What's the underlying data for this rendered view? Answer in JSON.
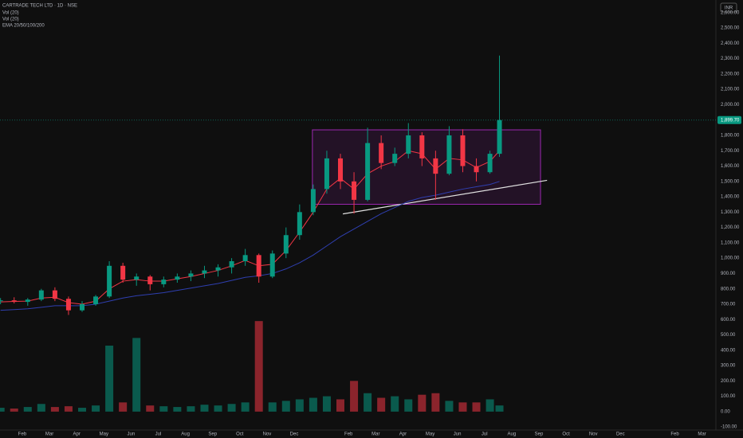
{
  "chart_data": {
    "type": "candlestick",
    "title": "CARTRADE TECH LTD · 1D · NSE",
    "indicators": [
      "Vol (20)",
      "Vol (20)",
      "EMA 20/50/100/200"
    ],
    "currency": "INR",
    "xlim": [
      0.18,
      26.51
    ],
    "xticks": [
      {
        "value": 1,
        "label": "Feb"
      },
      {
        "value": 2,
        "label": "Mar"
      },
      {
        "value": 3,
        "label": "Apr"
      },
      {
        "value": 4,
        "label": "May"
      },
      {
        "value": 5,
        "label": "Jun"
      },
      {
        "value": 6,
        "label": "Jul"
      },
      {
        "value": 7,
        "label": "Aug"
      },
      {
        "value": 8,
        "label": "Sep"
      },
      {
        "value": 9,
        "label": "Oct"
      },
      {
        "value": 10,
        "label": "Nov"
      },
      {
        "value": 11,
        "label": "Dec"
      },
      2025,
      {
        "value": 13,
        "label": "Feb"
      },
      {
        "value": 14,
        "label": "Mar"
      },
      {
        "value": 15,
        "label": "Apr"
      },
      {
        "value": 16,
        "label": "May"
      },
      {
        "value": 17,
        "label": "Jun"
      },
      {
        "value": 18,
        "label": "Jul"
      },
      {
        "value": 19,
        "label": "Aug"
      },
      {
        "value": 20,
        "label": "Sep"
      },
      {
        "value": 21,
        "label": "Oct"
      },
      {
        "value": 22,
        "label": "Nov"
      },
      {
        "value": 23,
        "label": "Dec"
      },
      2026,
      {
        "value": 25,
        "label": "Feb"
      },
      {
        "value": 26,
        "label": "Mar"
      }
    ],
    "ylim": [
      -120,
      2682
    ],
    "yticks": [
      {
        "value": -100,
        "label": "-100.00"
      },
      {
        "value": 0,
        "label": "0.00"
      },
      {
        "value": 100,
        "label": "100.00"
      },
      {
        "value": 200,
        "label": "200.00"
      },
      {
        "value": 300,
        "label": "300.00"
      },
      {
        "value": 400,
        "label": "400.00"
      },
      {
        "value": 500,
        "label": "500.00"
      },
      {
        "value": 600,
        "label": "600.00"
      },
      {
        "value": 700,
        "label": "700.00"
      },
      {
        "value": 800,
        "label": "800.00"
      },
      {
        "value": 900,
        "label": "900.00"
      },
      {
        "value": 1000,
        "label": "1,000.00"
      },
      {
        "value": 1100,
        "label": "1,100.00"
      },
      {
        "value": 1200,
        "label": "1,200.00"
      },
      {
        "value": 1300,
        "label": "1,300.00"
      },
      {
        "value": 1400,
        "label": "1,400.00"
      },
      {
        "value": 1500,
        "label": "1,500.00"
      },
      {
        "value": 1600,
        "label": "1,600.00"
      },
      {
        "value": 1700,
        "label": "1,700.00"
      },
      {
        "value": 1800,
        "label": "1,800.00"
      },
      {
        "value": 1900,
        "label": "1,900.00"
      },
      {
        "value": 2000,
        "label": "2,000.00"
      },
      {
        "value": 2100,
        "label": "2,100.00"
      },
      {
        "value": 2200,
        "label": "2,200.00"
      },
      {
        "value": 2300,
        "label": "2,300.00"
      },
      {
        "value": 2400,
        "label": "2,400.00"
      },
      {
        "value": 2500,
        "label": "2,500.00"
      },
      {
        "value": 2600,
        "label": "2,600.00"
      }
    ],
    "grid": false,
    "up_color": "#089981",
    "down_color": "#f23645",
    "candles": {
      "x": [
        0.2,
        0.7,
        1.2,
        1.7,
        2.2,
        2.7,
        3.2,
        3.7,
        4.2,
        4.7,
        5.2,
        5.7,
        6.2,
        6.7,
        7.2,
        7.7,
        8.2,
        8.7,
        9.2,
        9.7,
        10.2,
        10.7,
        11.2,
        11.7,
        12.2,
        12.7,
        13.2,
        13.7,
        14.2,
        14.7,
        15.2,
        15.7,
        16.2,
        16.7,
        17.2,
        17.7,
        18.2,
        18.55
      ],
      "open": [
        720,
        725,
        715,
        730,
        790,
        735,
        660,
        700,
        750,
        950,
        860,
        880,
        830,
        860,
        880,
        900,
        920,
        940,
        980,
        1020,
        880,
        1030,
        1150,
        1300,
        1450,
        1650,
        1500,
        1380,
        1750,
        1620,
        1680,
        1800,
        1650,
        1550,
        1800,
        1600,
        1560,
        1680
      ],
      "high": [
        740,
        745,
        740,
        800,
        810,
        750,
        720,
        760,
        980,
        970,
        900,
        890,
        880,
        900,
        920,
        950,
        960,
        1000,
        1060,
        1030,
        1050,
        1200,
        1350,
        1480,
        1700,
        1680,
        1560,
        1850,
        1800,
        1720,
        1880,
        1820,
        1700,
        1860,
        1840,
        1650,
        1700,
        2320
      ],
      "low": [
        700,
        705,
        690,
        720,
        720,
        630,
        650,
        690,
        740,
        840,
        820,
        790,
        810,
        840,
        850,
        870,
        880,
        900,
        950,
        840,
        870,
        1000,
        1120,
        1280,
        1420,
        1450,
        1290,
        1370,
        1580,
        1600,
        1650,
        1600,
        1380,
        1540,
        1560,
        1500,
        1550,
        1660
      ],
      "close": [
        725,
        715,
        730,
        790,
        735,
        660,
        700,
        750,
        950,
        860,
        880,
        830,
        860,
        880,
        900,
        920,
        940,
        980,
        1020,
        880,
        1030,
        1150,
        1300,
        1450,
        1650,
        1500,
        1380,
        1750,
        1620,
        1680,
        1800,
        1650,
        1550,
        1800,
        1600,
        1560,
        1680,
        1899.7
      ]
    },
    "volume": [
      25,
      20,
      30,
      50,
      30,
      35,
      25,
      40,
      430,
      60,
      480,
      40,
      35,
      30,
      35,
      45,
      40,
      50,
      60,
      590,
      60,
      70,
      80,
      90,
      100,
      80,
      200,
      120,
      90,
      100,
      80,
      110,
      120,
      70,
      60,
      60,
      80,
      40
    ],
    "lines": [
      {
        "color": "#f23645",
        "values": [
          715,
          718,
          720,
          740,
          745,
          710,
          700,
          720,
          800,
          850,
          860,
          850,
          850,
          865,
          880,
          900,
          920,
          950,
          985,
          950,
          960,
          1050,
          1170,
          1300,
          1450,
          1520,
          1450,
          1550,
          1600,
          1630,
          1700,
          1680,
          1580,
          1650,
          1640,
          1590,
          1630,
          1700
        ]
      },
      {
        "color": "#2f3fb0",
        "values": [
          660,
          665,
          670,
          680,
          690,
          690,
          690,
          700,
          720,
          740,
          755,
          765,
          775,
          790,
          805,
          820,
          835,
          855,
          875,
          885,
          900,
          930,
          970,
          1020,
          1080,
          1140,
          1190,
          1240,
          1290,
          1330,
          1370,
          1395,
          1410,
          1430,
          1450,
          1465,
          1480,
          1500
        ]
      }
    ],
    "rectangle": {
      "color": "#9c27b0",
      "x": [
        11.67,
        20.06
      ],
      "y": [
        1351,
        1836
      ]
    },
    "trendline": {
      "color": "#e0e0e0",
      "x": [
        12.79,
        20.3
      ],
      "y": [
        1288,
        1507
      ]
    },
    "last_price": {
      "value": 1899.7,
      "label": "1,899.70"
    }
  }
}
